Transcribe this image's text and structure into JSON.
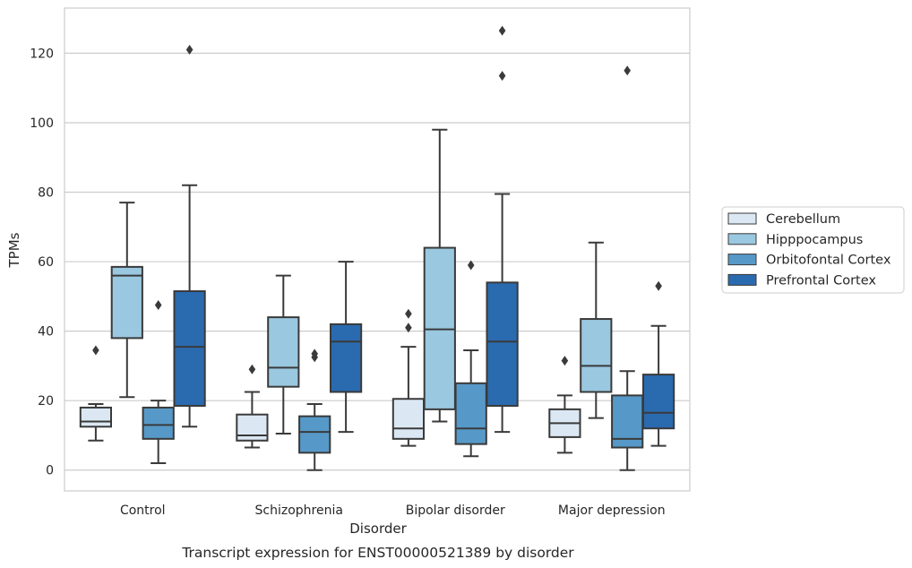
{
  "chart_data": {
    "type": "boxplot",
    "caption": "Transcript expression for ENST00000521389 by disorder",
    "xlabel": "Disorder",
    "ylabel": "TPMs",
    "ylim": [
      -6,
      133
    ],
    "yticks": [
      0,
      20,
      40,
      60,
      80,
      100,
      120
    ],
    "grid": "horizontal",
    "legend_position": "right",
    "categories": [
      "Control",
      "Schizophrenia",
      "Bipolar disorder",
      "Major depression"
    ],
    "series": [
      {
        "name": "Cerebellum",
        "color": "#dbe8f4",
        "boxes": [
          {
            "whisker_low": 8.5,
            "q1": 12.5,
            "median": 14,
            "q3": 18,
            "whisker_high": 19,
            "outliers": [
              34.5
            ]
          },
          {
            "whisker_low": 6.5,
            "q1": 8.5,
            "median": 10,
            "q3": 16,
            "whisker_high": 22.5,
            "outliers": [
              29
            ]
          },
          {
            "whisker_low": 7,
            "q1": 9,
            "median": 12,
            "q3": 20.5,
            "whisker_high": 35.5,
            "outliers": [
              41,
              45
            ]
          },
          {
            "whisker_low": 5,
            "q1": 9.5,
            "median": 13.5,
            "q3": 17.5,
            "whisker_high": 21.5,
            "outliers": [
              31.5
            ]
          }
        ]
      },
      {
        "name": "Hipppocampus",
        "color": "#9ac8e0",
        "boxes": [
          {
            "whisker_low": 21,
            "q1": 38,
            "median": 56,
            "q3": 58.5,
            "whisker_high": 77,
            "outliers": []
          },
          {
            "whisker_low": 10.5,
            "q1": 24,
            "median": 29.5,
            "q3": 44,
            "whisker_high": 56,
            "outliers": []
          },
          {
            "whisker_low": 14,
            "q1": 17.5,
            "median": 40.5,
            "q3": 64,
            "whisker_high": 98,
            "outliers": []
          },
          {
            "whisker_low": 15,
            "q1": 22.5,
            "median": 30,
            "q3": 43.5,
            "whisker_high": 65.5,
            "outliers": []
          }
        ]
      },
      {
        "name": "Orbitofontal Cortex",
        "color": "#5699c8",
        "boxes": [
          {
            "whisker_low": 2,
            "q1": 9,
            "median": 13,
            "q3": 18,
            "whisker_high": 20,
            "outliers": [
              47.5
            ]
          },
          {
            "whisker_low": 0,
            "q1": 5,
            "median": 11,
            "q3": 15.5,
            "whisker_high": 19,
            "outliers": [
              32.5,
              33.5
            ]
          },
          {
            "whisker_low": 4,
            "q1": 7.5,
            "median": 12,
            "q3": 25,
            "whisker_high": 34.5,
            "outliers": [
              59
            ]
          },
          {
            "whisker_low": 0,
            "q1": 6.5,
            "median": 9,
            "q3": 21.5,
            "whisker_high": 28.5,
            "outliers": [
              115
            ]
          }
        ]
      },
      {
        "name": "Prefrontal Cortex",
        "color": "#2a6aaf",
        "boxes": [
          {
            "whisker_low": 12.5,
            "q1": 18.5,
            "median": 35.5,
            "q3": 51.5,
            "whisker_high": 82,
            "outliers": [
              121
            ]
          },
          {
            "whisker_low": 11,
            "q1": 22.5,
            "median": 37,
            "q3": 42,
            "whisker_high": 60,
            "outliers": []
          },
          {
            "whisker_low": 11,
            "q1": 18.5,
            "median": 37,
            "q3": 54,
            "whisker_high": 79.5,
            "outliers": [
              113.5,
              126.5
            ]
          },
          {
            "whisker_low": 7,
            "q1": 12,
            "median": 16.5,
            "q3": 27.5,
            "whisker_high": 41.5,
            "outliers": [
              53
            ]
          }
        ]
      }
    ]
  }
}
